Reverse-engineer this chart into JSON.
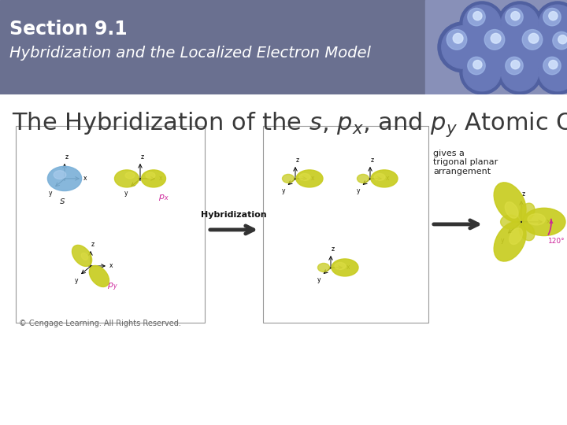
{
  "header_bg_color": "#6a7090",
  "header_bg_color2": "#8890b0",
  "header_text_color": "#ffffff",
  "header_title": "Section 9.1",
  "header_subtitle": "Hybridization and the Localized Electron Model",
  "body_bg_color": "#ffffff",
  "body_text_color": "#3a3a3a",
  "body_title_fontsize": 22,
  "header_title_fontsize": 17,
  "header_subtitle_fontsize": 14,
  "copyright_text": "© Cengage Learning. All Rights Reserved.",
  "copyright_fontsize": 7,
  "blue_orb": "#7ab0d8",
  "blue_orb_hi": "#b0d0f0",
  "yellow_orb": "#c8cc20",
  "yellow_orb_hi": "#e0e048",
  "yellow_orb_dark": "#a8aa10",
  "pink_label": "#cc2299",
  "arrow_color": "#222222",
  "label_color": "#222222",
  "box_edge_color": "#999999",
  "hybridization_text": "Hybridization",
  "gives_text": "gives a\ntrigonal planar\narrangement",
  "copyright_color": "#666666"
}
